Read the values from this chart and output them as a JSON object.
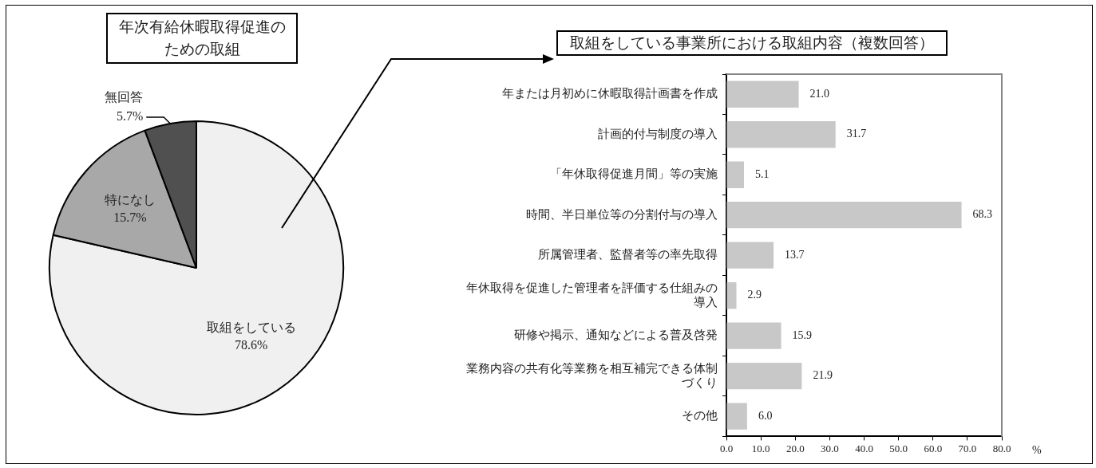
{
  "chart_data": [
    {
      "type": "pie",
      "title": "年次有給休暇取得促進のための取組",
      "categories": [
        "取組をしている",
        "特になし",
        "無回答"
      ],
      "values": [
        78.6,
        15.7,
        5.7
      ],
      "value_labels": [
        "78.6%",
        "15.7%",
        "5.7%"
      ],
      "colors": [
        "#f0f0f0",
        "#a8a8a8",
        "#505050"
      ]
    },
    {
      "type": "bar",
      "orientation": "horizontal",
      "title": "取組をしている事業所における取組内容（複数回答）",
      "categories": [
        "年または月初めに休暇取得計画書を作成",
        "計画的付与制度の導入",
        "「年休取得促進月間」等の実施",
        "時間、半日単位等の分割付与の導入",
        "所属管理者、監督者等の率先取得",
        "年休取得を促進した管理者を評価する仕組みの導入",
        "研修や掲示、通知などによる普及啓発",
        "業務内容の共有化等業務を相互補完できる体制づくり",
        "その他"
      ],
      "values": [
        21.0,
        31.7,
        5.1,
        68.3,
        13.7,
        2.9,
        15.9,
        21.9,
        6.0
      ],
      "value_labels": [
        "21.0",
        "31.7",
        "5.1",
        "68.3",
        "13.7",
        "2.9",
        "15.9",
        "21.9",
        "6.0"
      ],
      "color": "#c8c8c8",
      "xlabel": "%",
      "xlim": [
        0,
        80
      ],
      "xticks": [
        {
          "value": 0,
          "label": "0.0"
        },
        {
          "value": 10,
          "label": "10.0"
        },
        {
          "value": 20,
          "label": "20.0"
        },
        {
          "value": 30,
          "label": "30.0"
        },
        {
          "value": 40,
          "label": "40.0"
        },
        {
          "value": 50,
          "label": "50.0"
        },
        {
          "value": 60,
          "label": "60.0"
        },
        {
          "value": 70,
          "label": "70.0"
        },
        {
          "value": 80,
          "label": "80.0"
        }
      ]
    }
  ]
}
